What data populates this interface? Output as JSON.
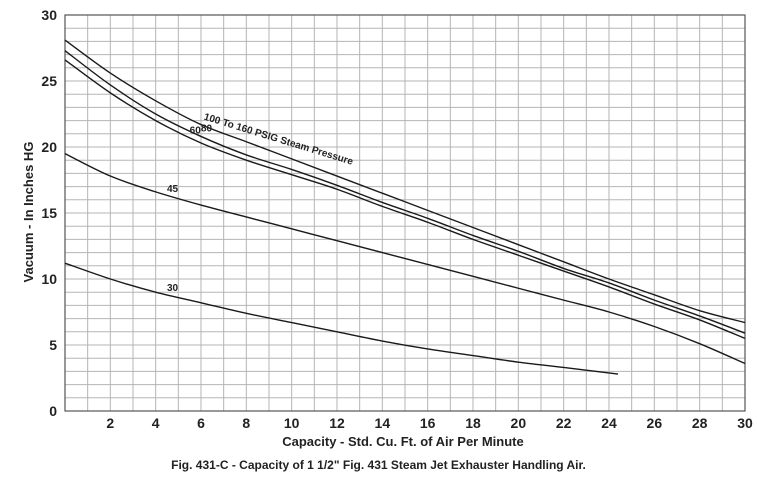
{
  "chart_data": {
    "type": "line",
    "xlabel": "Capacity - Std. Cu. Ft. of Air Per Minute",
    "ylabel": "Vacuum - In Inches HG",
    "caption": "Fig. 431-C - Capacity of 1 1/2\" Fig. 431 Steam Jet Exhauster Handling Air.",
    "xlim": [
      0,
      30
    ],
    "ylim": [
      0,
      30
    ],
    "x_ticks": [
      "2",
      "4",
      "6",
      "8",
      "10",
      "12",
      "14",
      "16",
      "18",
      "20",
      "22",
      "24",
      "26",
      "28",
      "30"
    ],
    "y_ticks": [
      "0",
      "5",
      "10",
      "15",
      "20",
      "25",
      "30"
    ],
    "grid": true,
    "series": [
      {
        "name": "100 To 160 PSIG Steam Pressure",
        "x": [
          0,
          2,
          4,
          6,
          8,
          10,
          12,
          14,
          16,
          18,
          20,
          22,
          24,
          26,
          28,
          30
        ],
        "y": [
          28.1,
          25.6,
          23.5,
          21.7,
          20.4,
          19.1,
          17.8,
          16.5,
          15.2,
          13.9,
          12.6,
          11.3,
          10.0,
          8.8,
          7.6,
          6.7
        ]
      },
      {
        "name": "80",
        "x": [
          0,
          2,
          4,
          6,
          8,
          10,
          12,
          14,
          16,
          18,
          20,
          22,
          24,
          26,
          28,
          30
        ],
        "y": [
          27.3,
          24.7,
          22.5,
          20.8,
          19.4,
          18.3,
          17.1,
          15.8,
          14.6,
          13.3,
          12.1,
          10.8,
          9.7,
          8.4,
          7.2,
          5.9
        ]
      },
      {
        "name": "60",
        "x": [
          0,
          2,
          4,
          6,
          8,
          10,
          12,
          14,
          16,
          18,
          20,
          22,
          24,
          26,
          28,
          30
        ],
        "y": [
          26.6,
          24.1,
          22.0,
          20.3,
          19.0,
          17.9,
          16.8,
          15.5,
          14.3,
          13.0,
          11.8,
          10.6,
          9.4,
          8.1,
          6.9,
          5.5
        ]
      },
      {
        "name": "45",
        "x": [
          0,
          2,
          4,
          6,
          8,
          10,
          12,
          14,
          16,
          18,
          20,
          22,
          24,
          26,
          28,
          30
        ],
        "y": [
          19.5,
          17.8,
          16.6,
          15.6,
          14.7,
          13.8,
          12.9,
          12.0,
          11.1,
          10.2,
          9.3,
          8.4,
          7.5,
          6.4,
          5.1,
          3.6
        ]
      },
      {
        "name": "30",
        "x": [
          0,
          2,
          4,
          6,
          8,
          10,
          12,
          14,
          16,
          18,
          20,
          22,
          24.4
        ],
        "y": [
          11.2,
          10.0,
          9.0,
          8.2,
          7.4,
          6.7,
          6.0,
          5.3,
          4.7,
          4.2,
          3.7,
          3.3,
          2.8
        ]
      }
    ]
  }
}
